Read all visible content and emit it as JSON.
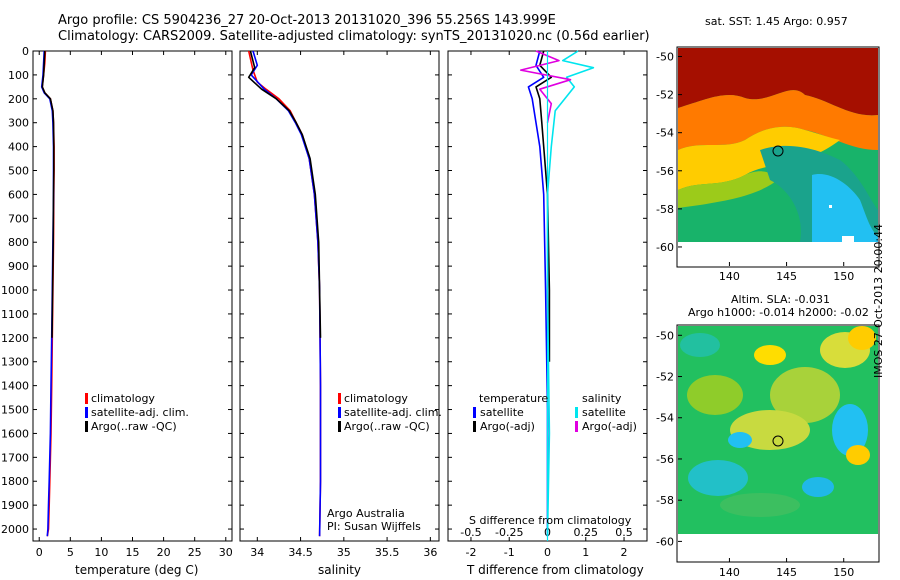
{
  "header": {
    "title_line1": "Argo profile: CS 5904236_27 20-Oct-2013 20131020_396 55.256S 143.999E",
    "title_line2": "Climatology: CARS2009. Satellite-adjusted climatology: synTS_20131020.nc (0.56d earlier)"
  },
  "colors": {
    "climatology": "#ff0000",
    "satellite_adj": "#0000ff",
    "argo": "#000000",
    "salinity_satellite": "#00e5ee",
    "salinity_argo": "#e000e0"
  },
  "chart_data": [
    {
      "id": "temperature",
      "type": "line",
      "xlabel": "temperature (deg C)",
      "xlim": [
        -1,
        31
      ],
      "xticks": [
        0,
        5,
        10,
        15,
        20,
        25,
        30
      ],
      "ylim": [
        2050,
        0
      ],
      "yticks": [
        0,
        100,
        200,
        300,
        400,
        500,
        600,
        700,
        800,
        900,
        1000,
        1100,
        1200,
        1300,
        1400,
        1500,
        1600,
        1700,
        1800,
        1900,
        2000
      ],
      "legend": [
        "climatology",
        "satellite-adj. clim.",
        "Argo(..raw -QC)"
      ],
      "series": [
        {
          "name": "climatology",
          "color": "#ff0000",
          "x": [
            1.0,
            0.9,
            0.7,
            0.5,
            0.9,
            1.8,
            2.2,
            2.3,
            2.4,
            2.4,
            2.35,
            2.3,
            2.2,
            2.1,
            2.0,
            1.9,
            1.7,
            1.6,
            1.5,
            1.3
          ],
          "y": [
            0,
            50,
            100,
            150,
            175,
            200,
            250,
            300,
            400,
            500,
            600,
            800,
            1000,
            1200,
            1400,
            1600,
            1800,
            1900,
            2000,
            2030
          ]
        },
        {
          "name": "satellite-adj. clim.",
          "color": "#0000ff",
          "x": [
            0.8,
            0.7,
            0.6,
            0.4,
            0.8,
            1.7,
            2.1,
            2.2,
            2.3,
            2.3,
            2.3,
            2.2,
            2.1,
            2.0,
            1.9,
            1.8,
            1.6,
            1.5,
            1.4,
            1.3
          ],
          "y": [
            0,
            50,
            100,
            150,
            175,
            200,
            250,
            300,
            400,
            500,
            600,
            800,
            1000,
            1200,
            1400,
            1600,
            1800,
            1900,
            2000,
            2030
          ]
        },
        {
          "name": "Argo(..raw -QC)",
          "color": "#000000",
          "x": [
            0.9,
            0.8,
            0.7,
            0.5,
            0.9,
            1.8,
            2.2,
            2.3,
            2.35,
            2.35,
            2.3,
            2.25,
            2.15,
            2.05
          ],
          "y": [
            0,
            50,
            100,
            150,
            175,
            200,
            250,
            300,
            400,
            500,
            600,
            800,
            1000,
            1200
          ]
        }
      ]
    },
    {
      "id": "salinity",
      "type": "line",
      "xlabel": "salinity",
      "xlim": [
        33.8,
        36.1
      ],
      "xticks": [
        34,
        34.5,
        35,
        35.5,
        36
      ],
      "xticklabels": [
        "34",
        "34.5",
        "35",
        "35.5",
        "36"
      ],
      "ylim": [
        2050,
        0
      ],
      "legend": [
        "climatology",
        "satellite-adj. clim.",
        "Argo(..raw -QC)"
      ],
      "annotation": [
        "Argo Australia",
        "PI: Susan Wijffels"
      ],
      "series": [
        {
          "name": "climatology",
          "color": "#ff0000",
          "x": [
            33.9,
            33.95,
            34.0,
            34.1,
            34.25,
            34.38,
            34.45,
            34.52,
            34.6,
            34.66,
            34.7,
            34.72,
            34.73,
            34.73,
            34.72
          ],
          "y": [
            0,
            80,
            130,
            160,
            200,
            250,
            300,
            350,
            450,
            600,
            800,
            1000,
            1400,
            1800,
            2030
          ]
        },
        {
          "name": "satellite-adj. clim.",
          "color": "#0000ff",
          "x": [
            33.95,
            34.0,
            33.93,
            34.08,
            34.22,
            34.36,
            34.44,
            34.51,
            34.6,
            34.66,
            34.7,
            34.72,
            34.73,
            34.73,
            34.72
          ],
          "y": [
            0,
            60,
            100,
            160,
            200,
            250,
            300,
            350,
            450,
            600,
            800,
            1000,
            1400,
            1800,
            2030
          ]
        },
        {
          "name": "Argo(..raw -QC)",
          "color": "#000000",
          "x": [
            33.92,
            33.97,
            33.9,
            34.05,
            34.22,
            34.37,
            34.45,
            34.52,
            34.61,
            34.67,
            34.71,
            34.72,
            34.73
          ],
          "y": [
            0,
            70,
            110,
            160,
            200,
            250,
            300,
            350,
            450,
            600,
            800,
            1000,
            1200
          ]
        }
      ]
    },
    {
      "id": "difference",
      "type": "line",
      "xlabel": "T difference from climatology",
      "x2label": "S difference from climatology",
      "xlim": [
        -2.6,
        2.6
      ],
      "xticks": [
        -2,
        -1,
        0,
        1,
        2
      ],
      "x2ticks": [
        -0.5,
        -0.25,
        0,
        0.25,
        0.5
      ],
      "x2ticklabels": [
        "-0.5",
        "-0.25",
        "0",
        "0.25",
        "0.5"
      ],
      "ylim": [
        2050,
        0
      ],
      "legend_headers": [
        "temperature",
        "salinity"
      ],
      "legend": [
        "satellite",
        "Argo(-adj)",
        "satellite",
        "Argo(-adj)"
      ],
      "series": [
        {
          "name": "satellite",
          "color": "#0000ff",
          "x": [
            -0.2,
            -0.3,
            -0.1,
            -0.5,
            -0.4,
            -0.3,
            -0.2,
            -0.1,
            -0.05,
            0,
            0
          ],
          "y": [
            0,
            60,
            110,
            150,
            200,
            300,
            400,
            600,
            1000,
            1500,
            2030
          ]
        },
        {
          "name": "Argo(-adj)",
          "color": "#000000",
          "x": [
            -0.1,
            -0.2,
            0.1,
            -0.3,
            -0.2,
            -0.15,
            -0.1,
            0,
            0.05,
            0.05
          ],
          "y": [
            0,
            60,
            110,
            150,
            200,
            300,
            400,
            600,
            1000,
            1300
          ]
        },
        {
          "name": "satellite",
          "color": "#00e5ee",
          "x": [
            0.8,
            0.4,
            1.2,
            0.5,
            0.7,
            0.2,
            0.1,
            0,
            0,
            0.05,
            0
          ],
          "y": [
            0,
            40,
            70,
            110,
            150,
            250,
            400,
            600,
            1000,
            1600,
            2030
          ]
        },
        {
          "name": "Argo(-adj)",
          "color": "#e000e0",
          "x": [
            -0.3,
            0.3,
            -0.7,
            0.6,
            -0.2,
            0.1,
            0
          ],
          "y": [
            0,
            40,
            80,
            120,
            160,
            220,
            300
          ]
        }
      ]
    },
    {
      "id": "sst_map",
      "type": "heatmap",
      "title": "sat. SST: 1.45 Argo: 0.957",
      "xlim": [
        135.5,
        153.0
      ],
      "ylim": [
        -61.0,
        -49.5
      ],
      "xticks": [
        140,
        145,
        150
      ],
      "yticks": [
        -50,
        -52,
        -54,
        -56,
        -58,
        -60
      ],
      "marker": {
        "lon": 144.0,
        "lat": -55.3
      }
    },
    {
      "id": "sla_map",
      "type": "heatmap",
      "title_line1": "Altim. SLA: -0.031",
      "title_line2": "Argo h1000: -0.014 h2000: -0.02",
      "xlim": [
        135.5,
        153.0
      ],
      "ylim": [
        -61.0,
        -49.5
      ],
      "xticks": [
        140,
        145,
        150
      ],
      "yticks": [
        -50,
        -52,
        -54,
        -56,
        -58,
        -60
      ],
      "marker": {
        "lon": 144.0,
        "lat": -55.3
      }
    }
  ],
  "stamp": "IMOS 27-Oct-2013 20:00:44"
}
